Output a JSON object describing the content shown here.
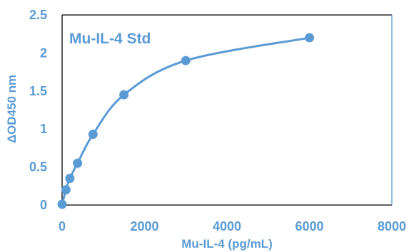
{
  "chart_data": {
    "type": "scatter",
    "title": "Mu-IL-4 Std",
    "xlabel": "Mu-IL-4 (pg/mL)",
    "ylabel": "ΔOD450 nm",
    "xlim": [
      0,
      8000
    ],
    "ylim": [
      0,
      2.5
    ],
    "x_ticks": [
      "0",
      "2000",
      "4000",
      "6000",
      "8000"
    ],
    "y_ticks": [
      "0",
      "0.5",
      "1",
      "1.5",
      "2",
      "2.5"
    ],
    "grid": false,
    "line": "smooth",
    "series": [
      {
        "x": [
          0,
          94,
          188,
          375,
          750,
          1500,
          3000,
          6000
        ],
        "y": [
          0.01,
          0.2,
          0.35,
          0.55,
          0.93,
          1.45,
          1.9,
          2.2
        ]
      }
    ],
    "colors": {
      "series": "#5b9bd5",
      "text": "#5b9bd5",
      "axis": "#000000",
      "right_border": "#5b9bd5"
    }
  }
}
